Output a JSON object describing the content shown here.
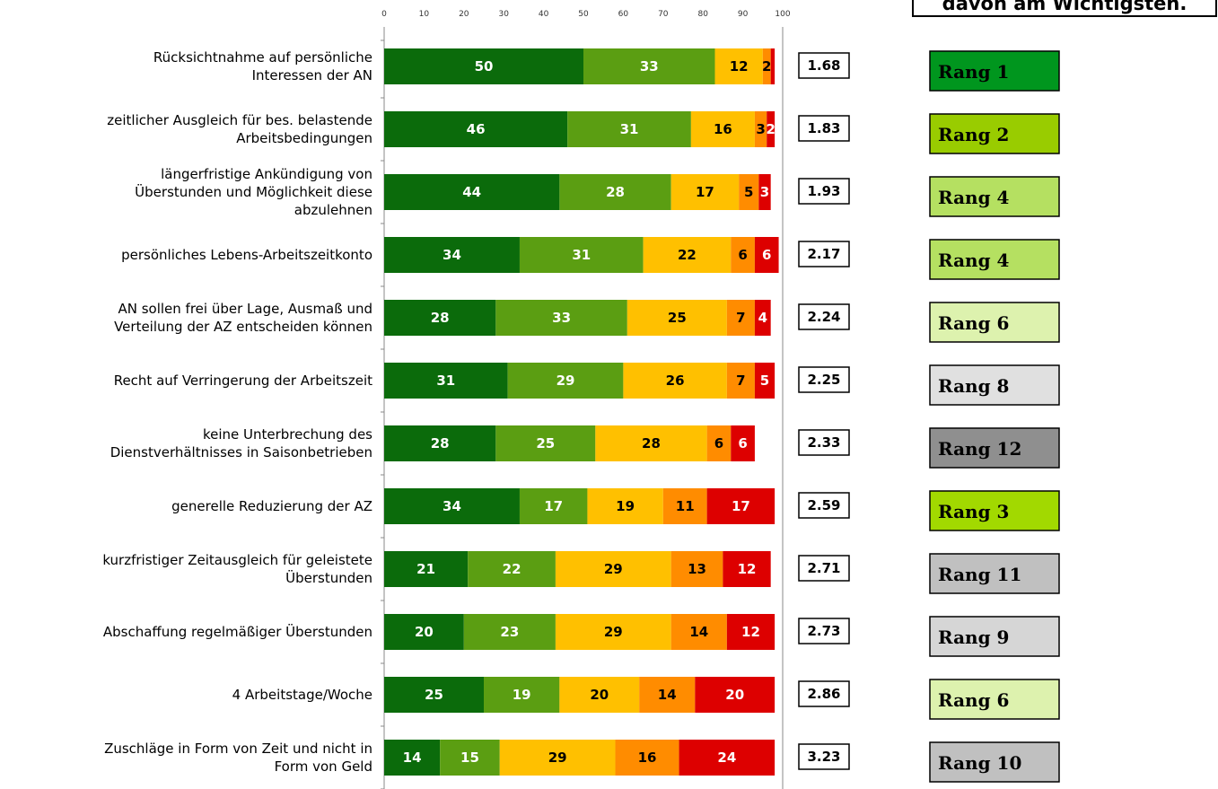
{
  "chart_data": {
    "type": "stacked_barh",
    "header": "davon am Wichtigsten.",
    "categories": [
      "Rücksichtnahme auf persönliche\nInteressen der AN",
      "zeitlicher Ausgleich für bes. belastende\nArbeitsbedingungen",
      "längerfristige Ankündigung von\nÜberstunden und Möglichkeit diese\nabzulehnen",
      "persönliches Lebens-Arbeitszeitkonto",
      "AN sollen frei über Lage, Ausmaß und\nVerteilung der AZ entscheiden können",
      "Recht auf Verringerung der Arbeitszeit",
      "keine Unterbrechung des\nDienstverhältnisses in Saisonbetrieben",
      "generelle Reduzierung der AZ",
      "kurzfristiger Zeitausgleich für geleistete\nÜberstunden",
      "Abschaffung regelmäßiger Überstunden",
      "4 Arbeitstage/Woche",
      "Zuschläge in Form von Zeit und nicht in\nForm von Geld"
    ],
    "series": [
      {
        "color": "#0b6b0b",
        "label_color": "#ffffff",
        "values": [
          50,
          46,
          44,
          34,
          28,
          31,
          28,
          34,
          21,
          20,
          25,
          14
        ]
      },
      {
        "color": "#5b9e12",
        "label_color": "#ffffff",
        "values": [
          33,
          31,
          28,
          31,
          33,
          29,
          25,
          17,
          22,
          23,
          19,
          15
        ]
      },
      {
        "color": "#ffc000",
        "label_color": "#000000",
        "values": [
          12,
          16,
          17,
          22,
          25,
          26,
          28,
          19,
          29,
          29,
          20,
          29
        ]
      },
      {
        "color": "#ff8c00",
        "label_color": "#000000",
        "values": [
          2,
          3,
          5,
          6,
          7,
          7,
          6,
          11,
          13,
          14,
          14,
          16
        ]
      },
      {
        "color": "#dd0000",
        "label_color": "#ffffff",
        "values": [
          1,
          2,
          3,
          6,
          4,
          5,
          6,
          17,
          12,
          12,
          20,
          24
        ],
        "value_labels": [
          null,
          "2",
          "3",
          "6",
          "4",
          "5",
          "6",
          "17",
          "12",
          "12",
          "20",
          "24"
        ]
      }
    ],
    "averages": [
      "1.68",
      "1.83",
      "1.93",
      "2.17",
      "2.24",
      "2.25",
      "2.33",
      "2.59",
      "2.71",
      "2.73",
      "2.86",
      "3.23"
    ],
    "ranks": [
      {
        "label": "Rang 1",
        "color": "#00961e"
      },
      {
        "label": "Rang 2",
        "color": "#99cc00"
      },
      {
        "label": "Rang 4",
        "color": "#b5e061"
      },
      {
        "label": "Rang 4",
        "color": "#b5e061"
      },
      {
        "label": "Rang 6",
        "color": "#ddf2ae"
      },
      {
        "label": "Rang 8",
        "color": "#e0e0e0"
      },
      {
        "label": "Rang 12",
        "color": "#8f8f8f"
      },
      {
        "label": "Rang 3",
        "color": "#a2d900"
      },
      {
        "label": "Rang 11",
        "color": "#c0c0c0"
      },
      {
        "label": "Rang 9",
        "color": "#d6d6d6"
      },
      {
        "label": "Rang 6",
        "color": "#ddf2ae"
      },
      {
        "label": "Rang 10",
        "color": "#c0c0c0"
      }
    ],
    "xlim": [
      0,
      100
    ],
    "xticks": [
      0,
      10,
      20,
      30,
      40,
      50,
      60,
      70,
      80,
      90,
      100
    ]
  }
}
